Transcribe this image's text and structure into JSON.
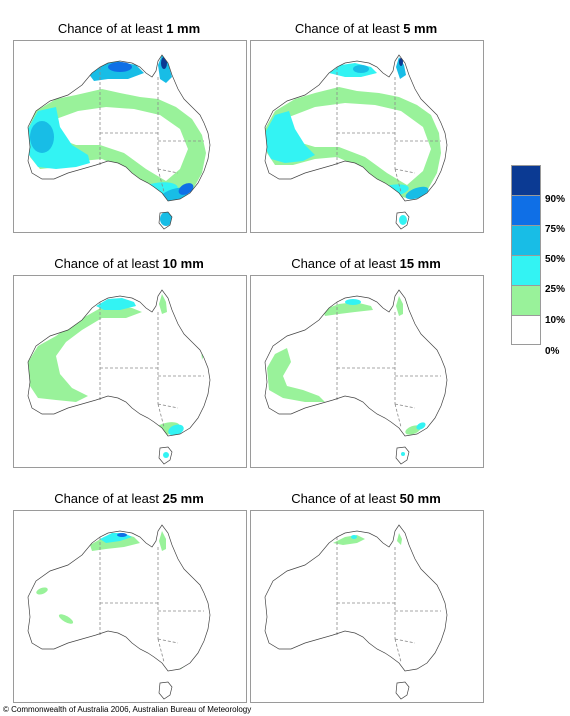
{
  "panels": [
    {
      "prefix": "Chance of at least ",
      "amount": "1 mm",
      "level": 6
    },
    {
      "prefix": "Chance of at least ",
      "amount": "5 mm",
      "level": 5
    },
    {
      "prefix": "Chance of at least ",
      "amount": "10 mm",
      "level": 4
    },
    {
      "prefix": "Chance of at least ",
      "amount": "15 mm",
      "level": 3
    },
    {
      "prefix": "Chance of at least ",
      "amount": "25 mm",
      "level": 2
    },
    {
      "prefix": "Chance of at least ",
      "amount": "50 mm",
      "level": 1
    }
  ],
  "legend": {
    "labels": [
      "90%",
      "75%",
      "50%",
      "25%",
      "10%",
      "0%"
    ],
    "colors": [
      "#0b3a93",
      "#0f6fe6",
      "#18bde6",
      "#33f3f3",
      "#99f29a",
      "#ffffff"
    ]
  },
  "copyright": "© Commonwealth of Australia 2006, Australian Bureau of Meteorology"
}
